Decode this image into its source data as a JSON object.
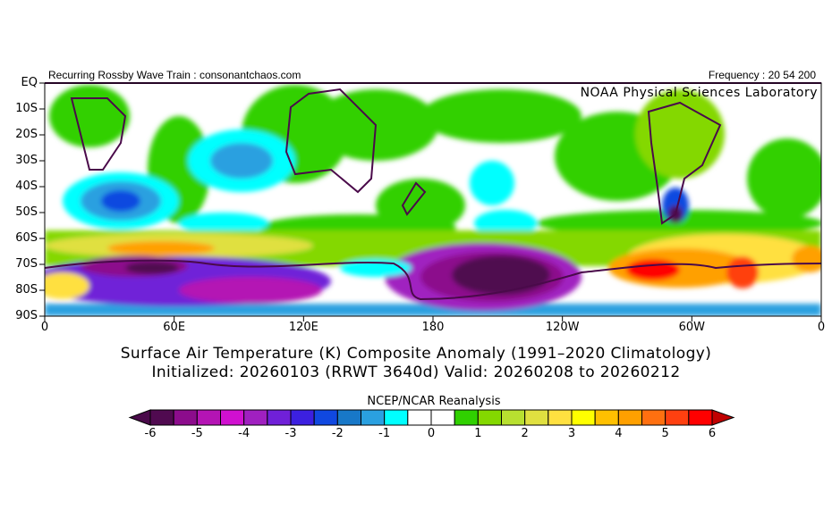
{
  "header": {
    "left": "Recurring Rossby Wave Train : consonantchaos.com",
    "right": "Frequency : 20 54 200",
    "lab": "NOAA Physical Sciences Laboratory"
  },
  "map": {
    "lat_labels": [
      "EQ",
      "10S",
      "20S",
      "30S",
      "40S",
      "50S",
      "60S",
      "70S",
      "80S",
      "90S"
    ],
    "lon_labels": [
      "0",
      "60E",
      "120E",
      "180",
      "120W",
      "60W",
      "0"
    ]
  },
  "title": {
    "line1": "Surface Air Temperature (K) Composite Anomaly (1991–2020 Climatology)",
    "line2": "Initialized: 20260103 (RRWT 3640d) Valid: 20260208 to 20260212"
  },
  "colorbar": {
    "title": "NCEP/NCAR Reanalysis",
    "tick_labels": [
      "-6",
      "-5",
      "-4",
      "-3",
      "-2",
      "-1",
      "0",
      "1",
      "2",
      "3",
      "4",
      "5",
      "6"
    ],
    "under_color": "#4a0a4a",
    "over_color": "#c00000",
    "colors": [
      "#500a50",
      "#8c0c8c",
      "#b414b4",
      "#d010d0",
      "#a020c0",
      "#7020d8",
      "#3c20e0",
      "#1048e0",
      "#1878c8",
      "#2aa0e0",
      "#00ffff",
      "#ffffff",
      "#ffffff",
      "#30d000",
      "#84d800",
      "#b8e030",
      "#e0e040",
      "#ffe040",
      "#ffff00",
      "#ffc000",
      "#ffa000",
      "#ff7010",
      "#ff4010",
      "#ff0000"
    ]
  }
}
